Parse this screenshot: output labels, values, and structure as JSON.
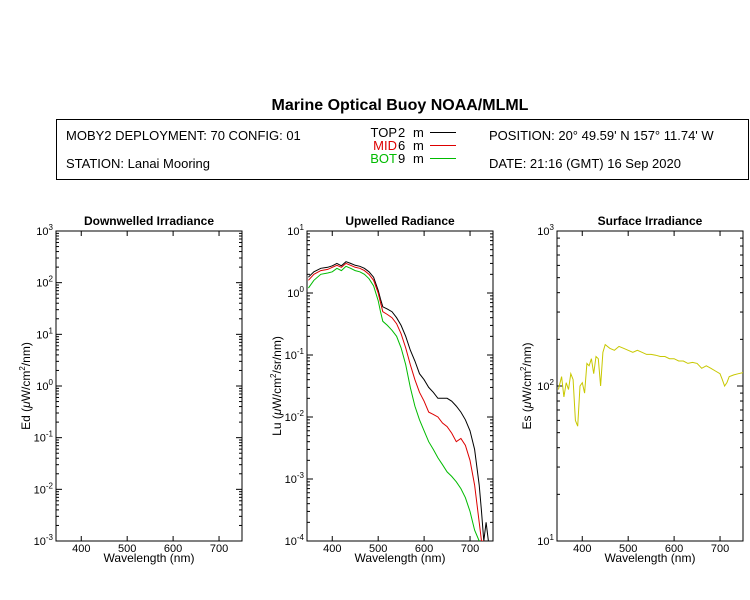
{
  "header": {
    "title": "Marine Optical Buoy NOAA/MLML",
    "deployment": "MOBY2 DEPLOYMENT: 70 CONFIG: 01",
    "station": "STATION: Lanai Mooring",
    "position": "POSITION: 20° 49.59' N   157° 11.74' W",
    "date": "DATE: 21:16 (GMT) 16 Sep 2020"
  },
  "legend": [
    {
      "name": "TOP",
      "depth": "2",
      "unit": "m",
      "color": "#000000"
    },
    {
      "name": "MID",
      "depth": "6",
      "unit": "m",
      "color": "#dd0000"
    },
    {
      "name": "BOT",
      "depth": "9",
      "unit": "m",
      "color": "#00bb00"
    }
  ],
  "chart_data": [
    {
      "type": "line",
      "title": "Downwelled Irradiance",
      "xlabel": "Wavelength (nm)",
      "ylabel_parts": [
        "Ed  (",
        "μ",
        "W/cm",
        "2",
        "/nm)"
      ],
      "xlim": [
        345,
        750
      ],
      "ylim_exp": [
        -3,
        3
      ],
      "xticks": [
        400,
        500,
        600,
        700
      ],
      "yticks": [
        {
          "base": "10",
          "exp": "3"
        },
        {
          "base": "10",
          "exp": "2"
        },
        {
          "base": "10",
          "exp": "1"
        },
        {
          "base": "10",
          "exp": "0"
        },
        {
          "base": "10",
          "exp": "-1"
        },
        {
          "base": "10",
          "exp": "-2"
        },
        {
          "base": "10",
          "exp": "-3"
        }
      ],
      "series": []
    },
    {
      "type": "line",
      "title": "Upwelled Radiance",
      "xlabel": "Wavelength (nm)",
      "ylabel_parts": [
        "Lu  (",
        "μ",
        "W/cm",
        "2",
        "/sr/nm)"
      ],
      "xlim": [
        345,
        750
      ],
      "ylim_exp": [
        -4,
        1
      ],
      "xticks": [
        400,
        500,
        600,
        700
      ],
      "yticks": [
        {
          "base": "10",
          "exp": "1"
        },
        {
          "base": "10",
          "exp": "0"
        },
        {
          "base": "10",
          "exp": "-1"
        },
        {
          "base": "10",
          "exp": "-2"
        },
        {
          "base": "10",
          "exp": "-3"
        },
        {
          "base": "10",
          "exp": "-4"
        }
      ],
      "series": [
        {
          "name": "TOP",
          "color": "#000000",
          "x": [
            348,
            360,
            375,
            390,
            400,
            410,
            420,
            430,
            440,
            450,
            460,
            470,
            480,
            490,
            500,
            505,
            510,
            520,
            530,
            540,
            550,
            560,
            570,
            580,
            590,
            600,
            610,
            620,
            630,
            640,
            650,
            660,
            670,
            680,
            690,
            700,
            710,
            720,
            725,
            730,
            735,
            740
          ],
          "y": [
            1.8,
            2.2,
            2.5,
            2.6,
            2.75,
            3.0,
            2.75,
            3.2,
            3.0,
            2.8,
            2.7,
            2.5,
            2.2,
            1.8,
            1.1,
            0.8,
            0.6,
            0.55,
            0.5,
            0.4,
            0.3,
            0.2,
            0.12,
            0.08,
            0.05,
            0.04,
            0.03,
            0.025,
            0.02,
            0.02,
            0.02,
            0.018,
            0.015,
            0.012,
            0.009,
            0.006,
            0.003,
            0.0008,
            0.0003,
            0.0001,
            0.0002,
            0.0001
          ]
        },
        {
          "name": "MID",
          "color": "#dd0000",
          "x": [
            348,
            360,
            375,
            390,
            400,
            410,
            420,
            430,
            440,
            450,
            460,
            470,
            480,
            490,
            500,
            505,
            510,
            520,
            530,
            540,
            550,
            560,
            570,
            580,
            590,
            600,
            610,
            620,
            630,
            640,
            650,
            660,
            670,
            680,
            690,
            700,
            710,
            720,
            725,
            730
          ],
          "y": [
            1.6,
            2.0,
            2.3,
            2.4,
            2.6,
            2.8,
            2.6,
            3.0,
            2.8,
            2.6,
            2.5,
            2.3,
            2.0,
            1.6,
            1.0,
            0.7,
            0.5,
            0.45,
            0.4,
            0.32,
            0.22,
            0.13,
            0.07,
            0.04,
            0.025,
            0.018,
            0.012,
            0.011,
            0.01,
            0.008,
            0.007,
            0.0055,
            0.004,
            0.0045,
            0.0035,
            0.002,
            0.0008,
            0.0002,
            0.0001,
            0.0001
          ]
        },
        {
          "name": "BOT",
          "color": "#00bb00",
          "x": [
            348,
            360,
            375,
            390,
            400,
            410,
            420,
            430,
            440,
            450,
            460,
            470,
            480,
            490,
            500,
            505,
            510,
            520,
            530,
            540,
            550,
            560,
            570,
            580,
            590,
            600,
            610,
            620,
            630,
            640,
            650,
            660,
            670,
            680,
            690,
            700,
            710,
            720
          ],
          "y": [
            1.2,
            1.6,
            2.0,
            2.1,
            2.2,
            2.5,
            2.3,
            2.7,
            2.5,
            2.3,
            2.2,
            2.0,
            1.7,
            1.3,
            0.75,
            0.5,
            0.35,
            0.3,
            0.25,
            0.2,
            0.13,
            0.07,
            0.03,
            0.015,
            0.009,
            0.006,
            0.004,
            0.003,
            0.0022,
            0.0017,
            0.0013,
            0.0011,
            0.0009,
            0.0007,
            0.0005,
            0.0003,
            0.00015,
            0.0001
          ]
        }
      ]
    },
    {
      "type": "line",
      "title": "Surface Irradiance",
      "xlabel": "Wavelength (nm)",
      "ylabel_parts": [
        "Es  (",
        "μ",
        "W/cm",
        "2",
        "/nm)"
      ],
      "xlim": [
        345,
        750
      ],
      "ylim_exp": [
        1,
        3
      ],
      "xticks": [
        400,
        500,
        600,
        700
      ],
      "yticks": [
        {
          "base": "10",
          "exp": "3"
        },
        {
          "base": "10",
          "exp": "2"
        },
        {
          "base": "10",
          "exp": "1"
        }
      ],
      "series": [
        {
          "name": "Es",
          "color": "#c8c800",
          "x": [
            348,
            355,
            360,
            365,
            370,
            375,
            380,
            385,
            390,
            395,
            400,
            405,
            410,
            415,
            420,
            425,
            430,
            435,
            440,
            445,
            450,
            460,
            470,
            480,
            490,
            500,
            510,
            520,
            530,
            540,
            550,
            560,
            570,
            580,
            590,
            600,
            610,
            620,
            630,
            640,
            650,
            660,
            670,
            680,
            690,
            700,
            705,
            710,
            715,
            720,
            730,
            740,
            750
          ],
          "y": [
            95,
            115,
            85,
            105,
            95,
            120,
            110,
            60,
            55,
            100,
            105,
            90,
            140,
            135,
            150,
            120,
            155,
            150,
            100,
            165,
            185,
            175,
            170,
            180,
            175,
            170,
            165,
            170,
            165,
            160,
            160,
            158,
            155,
            155,
            150,
            150,
            145,
            145,
            140,
            142,
            140,
            130,
            135,
            130,
            125,
            120,
            110,
            100,
            105,
            115,
            118,
            120,
            122
          ]
        }
      ]
    }
  ]
}
